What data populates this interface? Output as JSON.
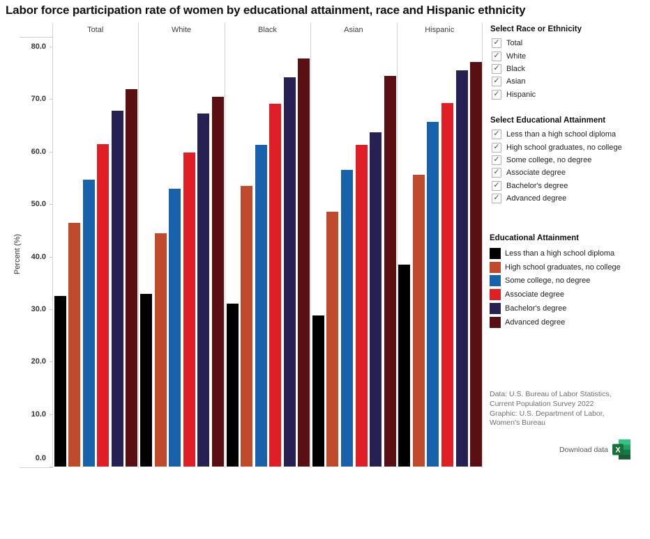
{
  "title": "Labor force participation rate of women by educational attainment, race and Hispanic ethnicity",
  "chart_data": {
    "type": "bar",
    "title": "Labor force participation rate of women by educational attainment, race and Hispanic ethnicity",
    "ylabel": "Percent (%)",
    "ylim": [
      0,
      80
    ],
    "yticks": [
      0,
      10,
      20,
      30,
      40,
      50,
      60,
      70,
      80
    ],
    "ytick_labels": [
      "0.0",
      "10.0",
      "20.0",
      "30.0",
      "40.0",
      "50.0",
      "60.0",
      "70.0",
      "80.0"
    ],
    "categories": [
      "Total",
      "White",
      "Black",
      "Asian",
      "Hispanic"
    ],
    "series": [
      {
        "name": "Less than a high school diploma",
        "color": "#000000",
        "values": [
          32.5,
          32.9,
          31.0,
          28.8,
          38.5
        ]
      },
      {
        "name": "High school graduates, no college",
        "color": "#bf4b2c",
        "values": [
          46.4,
          44.4,
          53.5,
          48.5,
          55.6
        ]
      },
      {
        "name": "Some college, no degree",
        "color": "#1762aa",
        "values": [
          54.6,
          52.9,
          61.3,
          56.5,
          65.7
        ]
      },
      {
        "name": "Associate degree",
        "color": "#e01e25",
        "values": [
          61.4,
          59.8,
          69.1,
          61.3,
          69.2
        ]
      },
      {
        "name": "Bachelor's degree",
        "color": "#262152",
        "values": [
          67.8,
          67.2,
          74.2,
          63.7,
          75.5
        ]
      },
      {
        "name": "Advanced degree",
        "color": "#5a1013",
        "values": [
          71.9,
          70.4,
          77.7,
          74.4,
          77.1
        ]
      }
    ],
    "grid": "vertical group separators only",
    "legend_position": "right"
  },
  "filters": {
    "race": {
      "title": "Select Race or Ethnicity",
      "items": [
        {
          "label": "Total",
          "checked": true
        },
        {
          "label": "White",
          "checked": true
        },
        {
          "label": "Black",
          "checked": true
        },
        {
          "label": "Asian",
          "checked": true
        },
        {
          "label": "Hispanic",
          "checked": true
        }
      ]
    },
    "education": {
      "title": "Select Educational Attainment",
      "items": [
        {
          "label": "Less than a high school diploma",
          "checked": true
        },
        {
          "label": "High school graduates, no college",
          "checked": true
        },
        {
          "label": "Some college, no degree",
          "checked": true
        },
        {
          "label": "Associate degree",
          "checked": true
        },
        {
          "label": "Bachelor's degree",
          "checked": true
        },
        {
          "label": "Advanced degree",
          "checked": true
        }
      ]
    }
  },
  "legend": {
    "title": "Educational Attainment",
    "items": [
      {
        "label": "Less than a high school diploma",
        "color": "#000000"
      },
      {
        "label": "High school graduates, no college",
        "color": "#bf4b2c"
      },
      {
        "label": "Some college, no degree",
        "color": "#1762aa"
      },
      {
        "label": "Associate degree",
        "color": "#e01e25"
      },
      {
        "label": "Bachelor's degree",
        "color": "#262152"
      },
      {
        "label": "Advanced degree",
        "color": "#5a1013"
      }
    ]
  },
  "source": {
    "lines": [
      "Data: U.S. Bureau of Labor Statistics,",
      "Current Population Survey 2022",
      "Graphic: U.S. Department of Labor,",
      "Women's Bureau"
    ]
  },
  "download": {
    "label": "Download data",
    "icon": "excel-icon",
    "excel_green": "#107c41"
  }
}
